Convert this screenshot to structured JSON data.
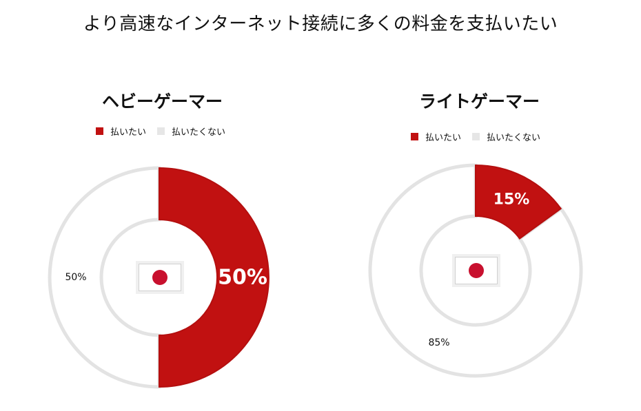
{
  "page": {
    "title": "より高速なインターネット接続に多くの料金を支払いたい"
  },
  "colors": {
    "yes": "#c11111",
    "no": "#e6e6e6",
    "ring_stroke": "#e3e3e3"
  },
  "legend": {
    "yes_label": "払いたい",
    "no_label": "払いたくない"
  },
  "chart_data": [
    {
      "type": "pie",
      "title": "ヘビーゲーマー",
      "categories": [
        "払いたい",
        "払いたくない"
      ],
      "values": [
        50,
        50
      ],
      "labels": [
        "50%",
        "50%"
      ],
      "center_icon": "japan-flag-icon"
    },
    {
      "type": "pie",
      "title": "ライトゲーマー",
      "categories": [
        "払いたい",
        "払いたくない"
      ],
      "values": [
        15,
        85
      ],
      "labels": [
        "15%",
        "85%"
      ],
      "center_icon": "japan-flag-icon"
    }
  ]
}
